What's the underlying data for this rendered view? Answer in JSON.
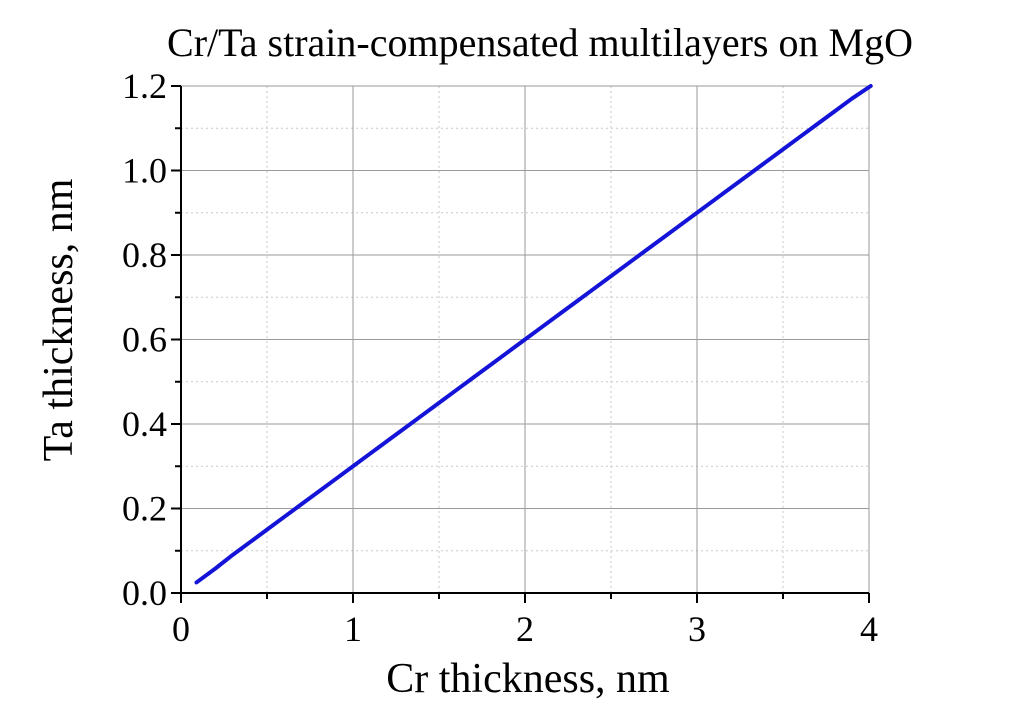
{
  "chart_data": {
    "type": "line",
    "title": "Cr/Ta strain-compensated multilayers on MgO",
    "xlabel": "Cr thickness, nm",
    "ylabel": "Ta thickness, nm",
    "xlim": [
      0,
      4
    ],
    "ylim": [
      0,
      1.2
    ],
    "xticks": [
      0,
      1,
      2,
      3,
      4
    ],
    "xtick_labels": [
      "0",
      "1",
      "2",
      "3",
      "4"
    ],
    "yticks": [
      0.0,
      0.2,
      0.4,
      0.6,
      0.8,
      1.0,
      1.2
    ],
    "ytick_labels": [
      "0.0",
      "0.2",
      "0.4",
      "0.6",
      "0.8",
      "1.0",
      "1.2"
    ],
    "grid": true,
    "colors": {
      "line": "#1414d8",
      "grid_major": "#9a9a9a",
      "grid_minor": "#c8c8c8",
      "axis": "#000000"
    },
    "series": [
      {
        "x": [
          0.09,
          0.2,
          0.3,
          0.4,
          0.5,
          0.6,
          0.7,
          0.8,
          0.9,
          1.0,
          1.1,
          1.2,
          1.3,
          1.4,
          1.5,
          1.6,
          1.7,
          1.8,
          1.9,
          2.0,
          2.1,
          2.2,
          2.3,
          2.4,
          2.5,
          2.6,
          2.7,
          2.8,
          2.9,
          3.0,
          3.1,
          3.2,
          3.3,
          3.4,
          3.5,
          3.6,
          3.7,
          3.8,
          3.9,
          4.01
        ],
        "y": [
          0.025,
          0.058,
          0.09,
          0.12,
          0.15,
          0.18,
          0.21,
          0.24,
          0.27,
          0.3,
          0.33,
          0.36,
          0.39,
          0.42,
          0.45,
          0.48,
          0.51,
          0.54,
          0.57,
          0.6,
          0.63,
          0.66,
          0.69,
          0.72,
          0.75,
          0.78,
          0.81,
          0.84,
          0.87,
          0.9,
          0.93,
          0.96,
          0.99,
          1.02,
          1.05,
          1.08,
          1.11,
          1.14,
          1.17,
          1.2
        ]
      }
    ]
  }
}
